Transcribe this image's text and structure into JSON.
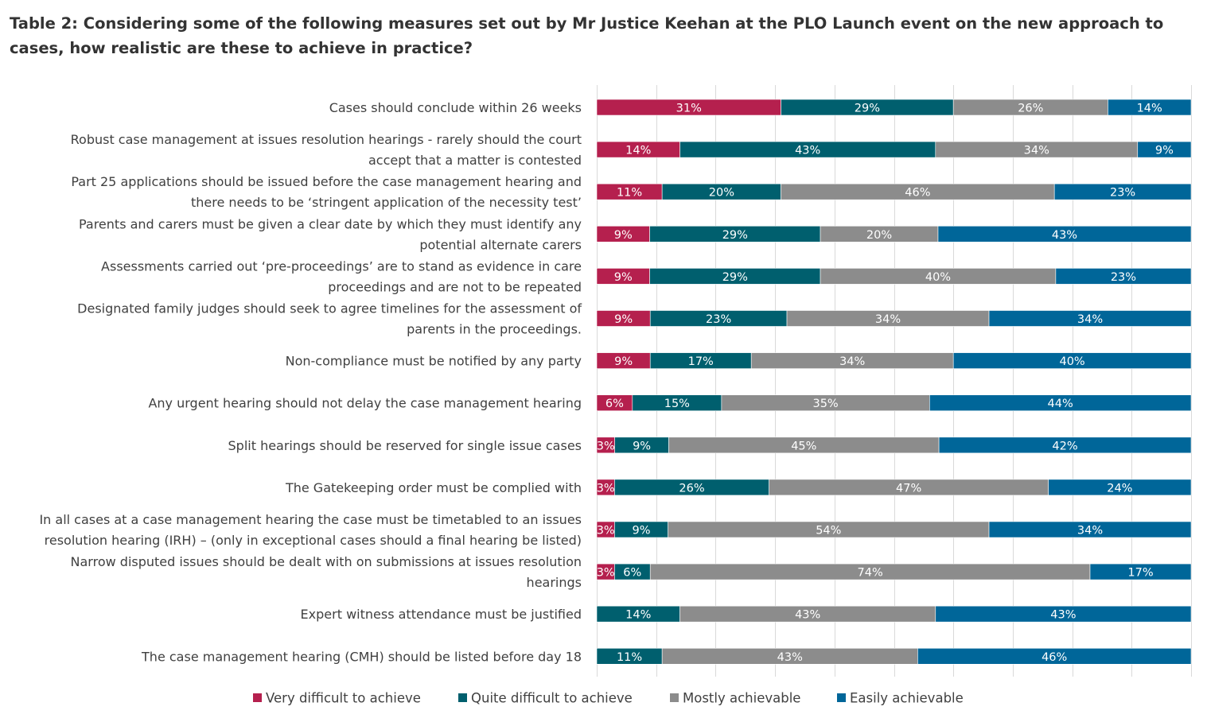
{
  "chart_data": {
    "type": "bar",
    "orientation": "horizontal",
    "stacked": "percent",
    "title": "Table 2: Considering some of the following measures set out by Mr Justice Keehan at the PLO Launch event on the new approach to cases, how realistic are these to achieve in practice?",
    "xlabel": "",
    "ylabel": "",
    "xlim": [
      0,
      100
    ],
    "grid": true,
    "legend": "bottom",
    "categories": [
      [
        "Cases should conclude within 26 weeks"
      ],
      [
        "Robust case management at issues resolution hearings - rarely should the court",
        "accept that a matter is contested"
      ],
      [
        "Part 25 applications should be issued before the case management hearing and",
        "there needs to be ‘stringent application of the necessity test’"
      ],
      [
        "Parents and carers must be given a clear date by which they must identify any",
        "potential alternate carers"
      ],
      [
        "Assessments carried out ‘pre-proceedings’ are to stand as evidence in care",
        "proceedings and are not to be repeated"
      ],
      [
        "Designated family judges should seek to agree timelines for the assessment of",
        "parents in the proceedings."
      ],
      [
        "Non-compliance must be notified by any party"
      ],
      [
        "Any urgent hearing should not delay the case management hearing"
      ],
      [
        "Split hearings should be reserved for single issue cases"
      ],
      [
        "The Gatekeeping order must be complied with"
      ],
      [
        "In all cases at a case management hearing the case must be timetabled to an issues",
        "resolution hearing (IRH) – (only in exceptional cases should a final hearing be listed)"
      ],
      [
        "Narrow disputed issues should be dealt with on submissions at issues resolution",
        "hearings"
      ],
      [
        "Expert witness attendance must be justified"
      ],
      [
        "The case management hearing (CMH) should be listed before day 18"
      ]
    ],
    "series": [
      {
        "name": "Very difficult to achieve",
        "color": "#B5204E",
        "values": [
          31,
          14,
          11,
          9,
          9,
          9,
          9,
          6,
          3,
          3,
          3,
          3,
          0,
          0
        ]
      },
      {
        "name": "Quite difficult to achieve",
        "color": "#005F6E",
        "values": [
          29,
          43,
          20,
          29,
          29,
          23,
          17,
          15,
          9,
          26,
          9,
          6,
          14,
          11
        ]
      },
      {
        "name": "Mostly achievable",
        "color": "#8C8C8C",
        "values": [
          26,
          34,
          46,
          20,
          40,
          34,
          34,
          35,
          45,
          47,
          54,
          74,
          43,
          43
        ]
      },
      {
        "name": "Easily achievable",
        "color": "#006699",
        "values": [
          14,
          9,
          23,
          43,
          23,
          34,
          40,
          44,
          42,
          24,
          34,
          17,
          43,
          46
        ]
      }
    ],
    "value_suffix": "%"
  }
}
